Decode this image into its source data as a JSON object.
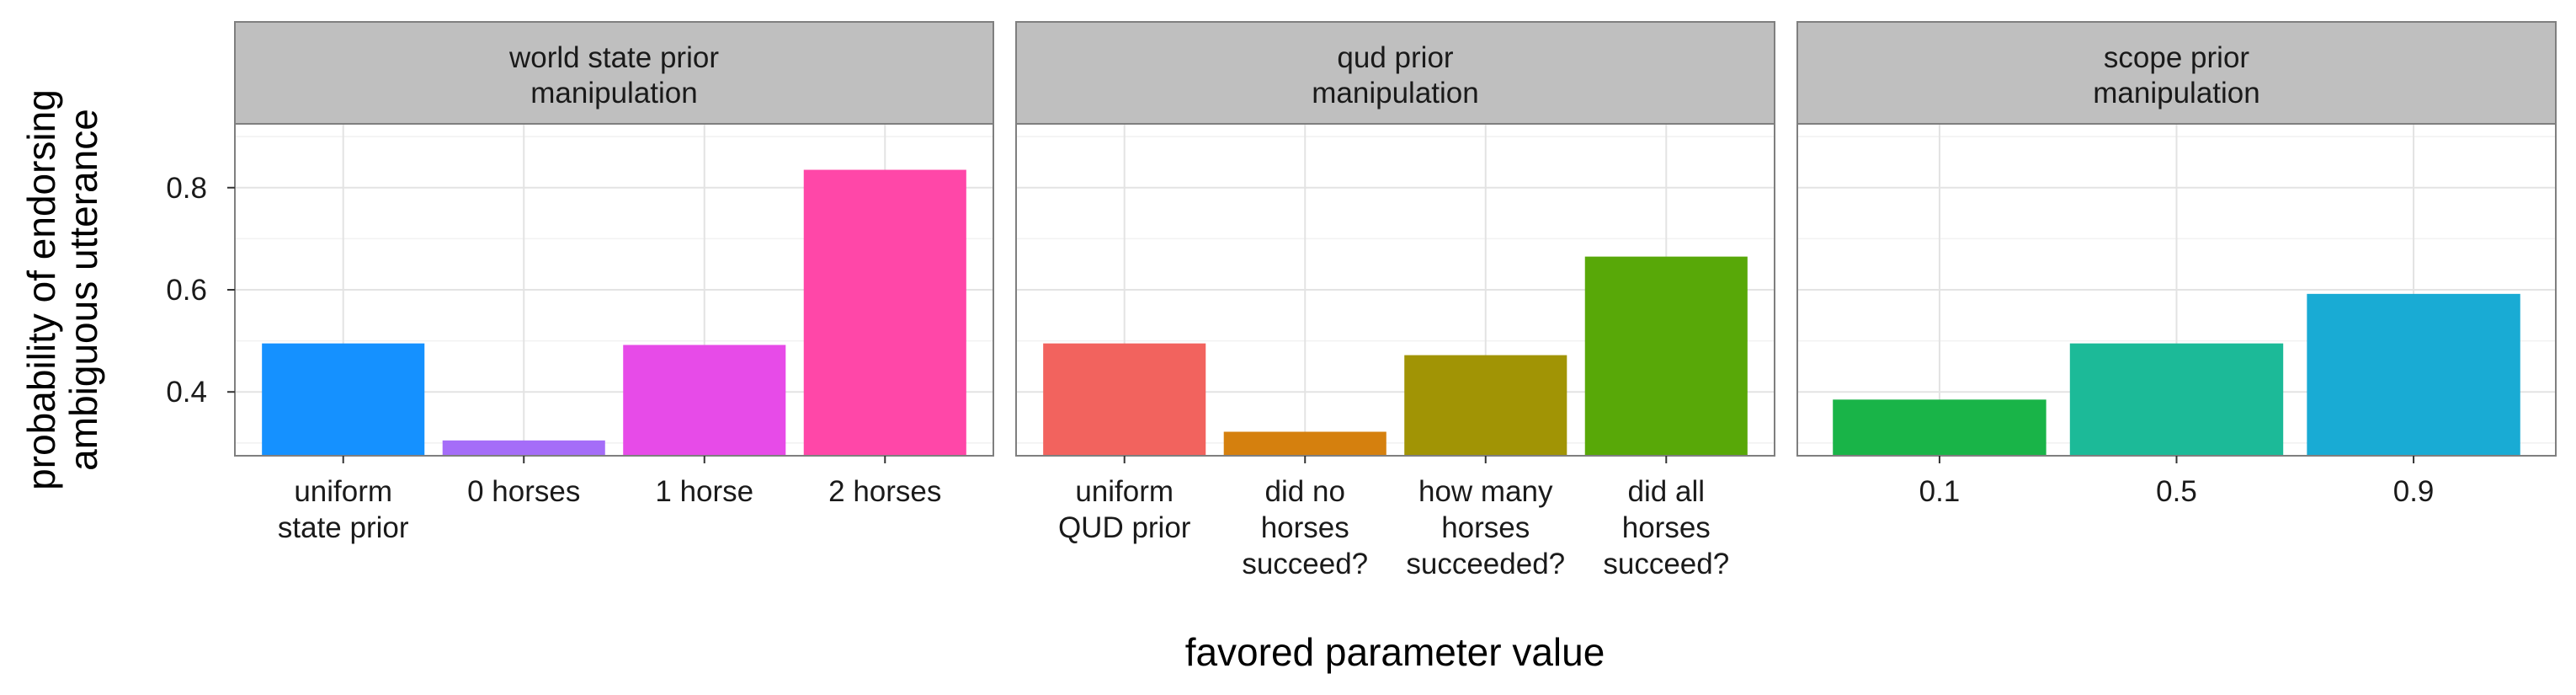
{
  "chart_data": {
    "type": "bar",
    "ylabel": [
      "probability of endorsing",
      "ambiguous utterance"
    ],
    "xlabel": "favored parameter value",
    "ylim": [
      0.275,
      0.925
    ],
    "y_ticks": [
      0.4,
      0.6,
      0.8
    ],
    "grid": true,
    "panels": [
      {
        "title": [
          "world state prior",
          "manipulation"
        ],
        "categories": [
          [
            "uniform",
            "state prior"
          ],
          [
            "0 horses"
          ],
          [
            "1 horse"
          ],
          [
            "2 horses"
          ]
        ],
        "values": [
          0.495,
          0.305,
          0.492,
          0.835
        ],
        "colors": [
          "#1591FF",
          "#A56DF8",
          "#E74BE8",
          "#FF47A8"
        ]
      },
      {
        "title": [
          "qud prior",
          "manipulation"
        ],
        "categories": [
          [
            "uniform",
            "QUD prior"
          ],
          [
            "did no",
            "horses",
            "succeed?"
          ],
          [
            "how many",
            "horses",
            "succeeded?"
          ],
          [
            "did all",
            "horses",
            "succeed?"
          ]
        ],
        "values": [
          0.495,
          0.322,
          0.472,
          0.665
        ],
        "colors": [
          "#F2635E",
          "#D5800E",
          "#A19405",
          "#58A808"
        ]
      },
      {
        "title": [
          "scope prior",
          "manipulation"
        ],
        "categories": [
          [
            "0.1"
          ],
          [
            "0.5"
          ],
          [
            "0.9"
          ]
        ],
        "values": [
          0.385,
          0.495,
          0.592
        ],
        "colors": [
          "#19B448",
          "#1CBA98",
          "#19ABD4"
        ]
      }
    ]
  }
}
